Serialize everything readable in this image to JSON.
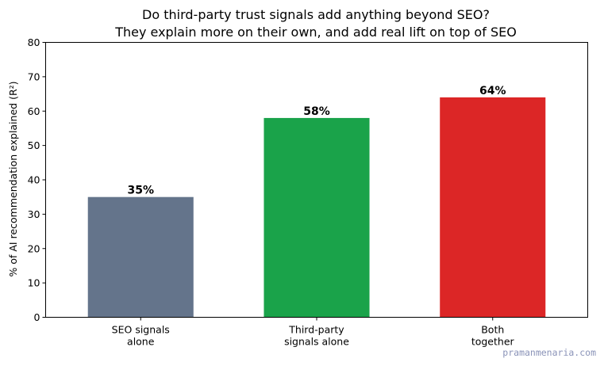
{
  "chart_data": {
    "type": "bar",
    "title_lines": [
      "Do third-party trust signals add anything beyond SEO?",
      "They explain more on their own, and add real lift on top of SEO"
    ],
    "xlabel": "",
    "ylabel": "% of AI recommendation explained (R²)",
    "ylim": [
      0,
      80
    ],
    "yticks": [
      "0",
      "10",
      "20",
      "30",
      "40",
      "50",
      "60",
      "70",
      "80"
    ],
    "categories": [
      [
        "SEO signals",
        "alone"
      ],
      [
        "Third-party",
        "signals alone"
      ],
      [
        "Both",
        "together"
      ]
    ],
    "values": [
      35,
      58,
      64
    ],
    "data_labels": [
      "35%",
      "58%",
      "64%"
    ],
    "colors": [
      "#64748b",
      "#1aa34a",
      "#dc2626"
    ],
    "grid": false,
    "legend": "none"
  },
  "watermark": "pramanmenaria.com"
}
